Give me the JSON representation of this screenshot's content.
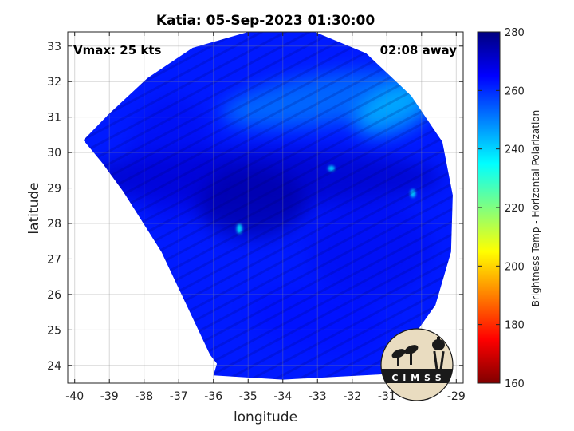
{
  "title": "Katia: 05-Sep-2023 01:30:00",
  "vmax_label": "Vmax: 25 kts",
  "time_away_label": "02:08 away",
  "xlabel": "longitude",
  "ylabel": "latitude",
  "colorbar_label": "Brightness Temp - Horizontal Polarization",
  "logo_text": "C I M S S",
  "x_axis": {
    "min": -40.2,
    "max": -28.8,
    "ticks": [
      -40,
      -39,
      -38,
      -37,
      -36,
      -35,
      -34,
      -33,
      -32,
      -31,
      -30,
      -29
    ]
  },
  "y_axis": {
    "min": 23.5,
    "max": 33.4,
    "ticks": [
      24,
      25,
      26,
      27,
      28,
      29,
      30,
      31,
      32,
      33
    ]
  },
  "colorbar": {
    "min": 160,
    "max": 280,
    "ticks": [
      160,
      180,
      200,
      220,
      240,
      260,
      280
    ],
    "colormap": "jet",
    "colors": [
      "#800000",
      "#ff0000",
      "#ff8000",
      "#ffff00",
      "#80ff80",
      "#00ffff",
      "#0080ff",
      "#0000ff",
      "#000080"
    ]
  },
  "grid": true,
  "swath": {
    "center_lon": -34.6,
    "center_lat": 28.6,
    "boundary": [
      [
        -39.75,
        30.35
      ],
      [
        -39.0,
        31.1
      ],
      [
        -37.9,
        32.1
      ],
      [
        -36.6,
        32.95
      ],
      [
        -35.0,
        33.4
      ],
      [
        -33.2,
        33.45
      ],
      [
        -31.6,
        32.8
      ],
      [
        -30.3,
        31.6
      ],
      [
        -29.4,
        30.3
      ],
      [
        -29.1,
        28.8
      ],
      [
        -29.15,
        27.2
      ],
      [
        -29.6,
        25.7
      ],
      [
        -30.4,
        24.6
      ],
      [
        -31.1,
        23.75
      ],
      [
        -34.0,
        23.6
      ],
      [
        -36.0,
        23.72
      ],
      [
        -35.9,
        24.05
      ],
      [
        -36.1,
        24.3
      ],
      [
        -37.5,
        27.2
      ],
      [
        -38.6,
        28.9
      ],
      [
        -39.2,
        29.7
      ]
    ],
    "background_temp": 262,
    "features": [
      {
        "type": "ellipse",
        "lon": -34.6,
        "lat": 29.3,
        "rx_deg": 5.2,
        "ry_deg": 0.8,
        "rotate": 0,
        "temp": 272,
        "opacity": 0.7
      },
      {
        "type": "ellipse",
        "lon": -34.9,
        "lat": 28.6,
        "rx_deg": 1.6,
        "ry_deg": 1.0,
        "rotate": 0,
        "temp": 275,
        "opacity": 0.8
      },
      {
        "type": "ellipse",
        "lon": -32.8,
        "lat": 31.5,
        "rx_deg": 3.0,
        "ry_deg": 0.7,
        "rotate": 8,
        "temp": 246,
        "opacity": 0.55
      },
      {
        "type": "ellipse",
        "lon": -30.8,
        "lat": 31.2,
        "rx_deg": 1.2,
        "ry_deg": 0.6,
        "rotate": 22,
        "temp": 238,
        "opacity": 0.6
      },
      {
        "type": "ellipse",
        "lon": -31.5,
        "lat": 27.3,
        "rx_deg": 1.8,
        "ry_deg": 1.4,
        "rotate": 0,
        "temp": 268,
        "opacity": 0.35
      },
      {
        "type": "ellipse",
        "lon": -37.2,
        "lat": 29.8,
        "rx_deg": 1.2,
        "ry_deg": 1.8,
        "rotate": 0,
        "temp": 268,
        "opacity": 0.35
      },
      {
        "type": "ellipse",
        "lon": -33.0,
        "lat": 25.3,
        "rx_deg": 2.0,
        "ry_deg": 0.9,
        "rotate": -10,
        "temp": 265,
        "opacity": 0.3
      },
      {
        "type": "ellipse",
        "lon": -35.25,
        "lat": 27.85,
        "rx_deg": 0.08,
        "ry_deg": 0.14,
        "rotate": 0,
        "temp": 238,
        "opacity": 0.9
      },
      {
        "type": "ellipse",
        "lon": -32.6,
        "lat": 29.55,
        "rx_deg": 0.1,
        "ry_deg": 0.08,
        "rotate": 0,
        "temp": 240,
        "opacity": 0.9
      },
      {
        "type": "ellipse",
        "lon": -30.25,
        "lat": 28.85,
        "rx_deg": 0.08,
        "ry_deg": 0.12,
        "rotate": 0,
        "temp": 240,
        "opacity": 0.9
      }
    ]
  }
}
